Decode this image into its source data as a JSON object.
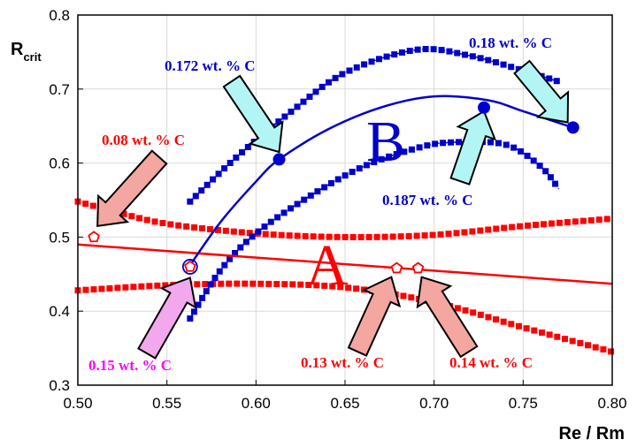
{
  "chart_data": {
    "type": "scatter",
    "xlabel": "Re / Rm",
    "ylabel_main": "R",
    "ylabel_sub": "crit",
    "xlim": [
      0.5,
      0.8
    ],
    "ylim": [
      0.3,
      0.8
    ],
    "xticks": [
      "0.50",
      "0.55",
      "0.60",
      "0.65",
      "0.70",
      "0.75",
      "0.80"
    ],
    "yticks": [
      "0.3",
      "0.4",
      "0.5",
      "0.6",
      "0.7",
      "0.8"
    ],
    "grid": true,
    "colors": {
      "red": "#ff0000",
      "blue": "#0000cc",
      "magenta": "#ff00ff"
    },
    "regions": {
      "a_label": "A",
      "b_label": "B"
    },
    "red_upper_band": [
      [
        0.5,
        0.548
      ],
      [
        0.52,
        0.535
      ],
      [
        0.55,
        0.518
      ],
      [
        0.6,
        0.505
      ],
      [
        0.65,
        0.5
      ],
      [
        0.7,
        0.503
      ],
      [
        0.75,
        0.515
      ],
      [
        0.8,
        0.525
      ]
    ],
    "red_trend_line": [
      [
        0.5,
        0.49
      ],
      [
        0.8,
        0.437
      ]
    ],
    "red_lower_band": [
      [
        0.5,
        0.428
      ],
      [
        0.55,
        0.435
      ],
      [
        0.6,
        0.437
      ],
      [
        0.65,
        0.432
      ],
      [
        0.7,
        0.412
      ],
      [
        0.75,
        0.378
      ],
      [
        0.8,
        0.345
      ]
    ],
    "blue_upper_band": [
      [
        0.563,
        0.548
      ],
      [
        0.59,
        0.61
      ],
      [
        0.62,
        0.67
      ],
      [
        0.65,
        0.722
      ],
      [
        0.69,
        0.753
      ],
      [
        0.72,
        0.745
      ],
      [
        0.75,
        0.725
      ],
      [
        0.77,
        0.71
      ]
    ],
    "blue_trend_curve": [
      [
        0.561,
        0.455
      ],
      [
        0.58,
        0.52
      ],
      [
        0.6,
        0.575
      ],
      [
        0.613,
        0.605
      ],
      [
        0.64,
        0.645
      ],
      [
        0.67,
        0.675
      ],
      [
        0.7,
        0.69
      ],
      [
        0.73,
        0.685
      ],
      [
        0.75,
        0.67
      ],
      [
        0.778,
        0.648
      ]
    ],
    "blue_lower_band": [
      [
        0.563,
        0.39
      ],
      [
        0.58,
        0.455
      ],
      [
        0.6,
        0.505
      ],
      [
        0.63,
        0.555
      ],
      [
        0.66,
        0.595
      ],
      [
        0.69,
        0.62
      ],
      [
        0.71,
        0.628
      ],
      [
        0.74,
        0.625
      ],
      [
        0.76,
        0.595
      ],
      [
        0.77,
        0.565
      ]
    ],
    "blue_points": [
      [
        0.613,
        0.605
      ],
      [
        0.728,
        0.675
      ],
      [
        0.778,
        0.648
      ]
    ],
    "red_open_points": [
      [
        0.509,
        0.5
      ],
      [
        0.679,
        0.458
      ],
      [
        0.691,
        0.458
      ]
    ],
    "magenta_open_points": [
      [
        0.563,
        0.46
      ]
    ],
    "annotations": [
      {
        "text": "0.18 wt. % C",
        "color": "blue"
      },
      {
        "text": "0.172 wt. % C",
        "color": "blue"
      },
      {
        "text": "0.08 wt. % C",
        "color": "red"
      },
      {
        "text": "0.187 wt. % C",
        "color": "blue"
      },
      {
        "text": "0.15 wt. % C",
        "color": "magenta"
      },
      {
        "text": "0.13 wt. % C",
        "color": "red"
      },
      {
        "text": "0.14 wt. % C",
        "color": "red"
      }
    ]
  }
}
